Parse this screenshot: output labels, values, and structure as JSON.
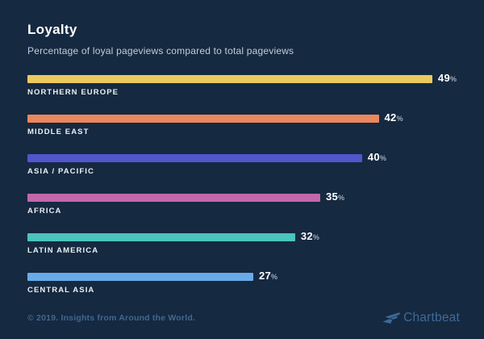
{
  "page": {
    "background": "#152940"
  },
  "header": {
    "title": "Loyalty",
    "subtitle": "Percentage of loyal pageviews compared to total pageviews"
  },
  "chart_data": {
    "type": "bar",
    "orientation": "horizontal",
    "title": "Loyalty",
    "subtitle": "Percentage of loyal pageviews compared to total pageviews",
    "categories": [
      "NORTHERN EUROPE",
      "MIDDLE EAST",
      "ASIA / PACIFIC",
      "AFRICA",
      "LATIN AMERICA",
      "CENTRAL ASIA"
    ],
    "values": [
      49,
      42,
      40,
      35,
      32,
      27
    ],
    "unit": "%",
    "bar_colors": [
      "#ecc95e",
      "#ea875c",
      "#5156cd",
      "#c267ab",
      "#4cc3bc",
      "#68abe9"
    ],
    "xlim": [
      0,
      49
    ],
    "grid": false,
    "legend": "none",
    "value_labels_shown": true
  },
  "footer": {
    "copyright": "© 2019. Insights from Around the World.",
    "brand": "Chartbeat",
    "brand_color": "#3e6b99"
  }
}
